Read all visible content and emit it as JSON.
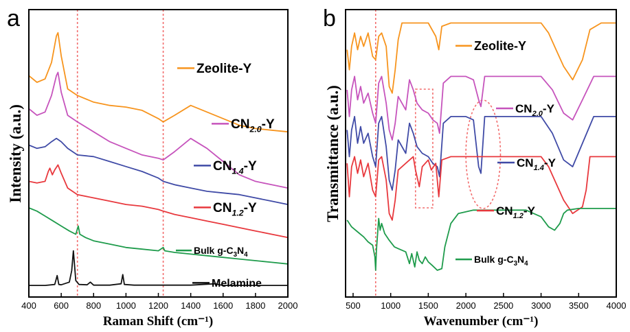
{
  "chart_data": [
    {
      "type": "line",
      "panel_label": "a",
      "xlabel": "Raman Shift (cm⁻¹)",
      "ylabel": "Intensity (a.u.)",
      "xlim": [
        400,
        2000
      ],
      "x_ticks": [
        "400",
        "600",
        "800",
        "1000",
        "1200",
        "1400",
        "1600",
        "1800",
        "2000"
      ],
      "y_ticks": [],
      "reference_lines_x": [
        700,
        1230
      ],
      "legend_placement": "inline-right",
      "series": [
        {
          "name": "Zeolite-Y",
          "color": "#F7941D",
          "x": [
            400,
            450,
            500,
            540,
            570,
            580,
            600,
            640,
            700,
            800,
            900,
            1000,
            1100,
            1200,
            1230,
            1300,
            1400,
            1500,
            1600,
            1700,
            1800,
            1900,
            2000
          ],
          "y": [
            6.4,
            6.2,
            6.3,
            6.8,
            7.6,
            7.7,
            7.0,
            6.0,
            5.8,
            5.6,
            5.5,
            5.45,
            5.35,
            5.1,
            5.0,
            5.2,
            5.5,
            5.3,
            5.1,
            4.9,
            4.8,
            4.75,
            4.7
          ]
        },
        {
          "name": "CN2.0-Y",
          "color": "#C653BC",
          "x": [
            400,
            450,
            500,
            540,
            570,
            580,
            600,
            640,
            700,
            800,
            900,
            1000,
            1100,
            1200,
            1230,
            1300,
            1400,
            1500,
            1600,
            1700,
            1800,
            1900,
            2000
          ],
          "y": [
            5.4,
            5.2,
            5.3,
            5.8,
            6.4,
            6.5,
            5.9,
            5.2,
            5.0,
            4.7,
            4.4,
            4.2,
            4.0,
            3.9,
            3.85,
            4.1,
            4.5,
            4.2,
            3.8,
            3.4,
            3.2,
            3.1,
            3.0
          ]
        },
        {
          "name": "CN1.4-Y",
          "color": "#3F4AA6",
          "x": [
            400,
            450,
            500,
            540,
            570,
            600,
            640,
            700,
            800,
            900,
            1000,
            1100,
            1200,
            1230,
            1300,
            1400,
            1500,
            1600,
            1700,
            1800,
            1900,
            2000
          ],
          "y": [
            4.3,
            4.2,
            4.25,
            4.4,
            4.5,
            4.4,
            4.2,
            4.0,
            3.95,
            3.8,
            3.65,
            3.5,
            3.3,
            3.2,
            3.1,
            3.0,
            2.9,
            2.85,
            2.8,
            2.7,
            2.6,
            2.5
          ]
        },
        {
          "name": "CN1.2-Y",
          "color": "#E8383D",
          "x": [
            400,
            450,
            500,
            520,
            530,
            545,
            560,
            580,
            600,
            640,
            700,
            800,
            900,
            1000,
            1100,
            1200,
            1230,
            1300,
            1400,
            1500,
            1600,
            1700,
            1800,
            1900,
            2000
          ],
          "y": [
            3.2,
            3.15,
            3.2,
            3.5,
            3.6,
            3.4,
            3.55,
            3.7,
            3.45,
            3.0,
            2.8,
            2.7,
            2.6,
            2.5,
            2.45,
            2.35,
            2.3,
            2.2,
            2.1,
            2.0,
            1.9,
            1.8,
            1.7,
            1.6,
            1.5
          ]
        },
        {
          "name": "Bulk g-C3N4",
          "color": "#1E9B4B",
          "x": [
            400,
            450,
            500,
            550,
            600,
            650,
            690,
            705,
            715,
            750,
            800,
            900,
            1000,
            1100,
            1200,
            1230,
            1240,
            1300,
            1400,
            1500,
            1600,
            1700,
            1800,
            1900,
            2000
          ],
          "y": [
            2.4,
            2.3,
            2.15,
            2.0,
            1.85,
            1.7,
            1.6,
            1.85,
            1.6,
            1.5,
            1.4,
            1.3,
            1.2,
            1.15,
            1.1,
            1.2,
            1.1,
            1.05,
            1.0,
            0.95,
            0.9,
            0.85,
            0.8,
            0.75,
            0.7
          ]
        },
        {
          "name": "Melamine",
          "color": "#111111",
          "x": [
            400,
            500,
            560,
            575,
            585,
            600,
            650,
            665,
            675,
            690,
            710,
            760,
            780,
            800,
            900,
            970,
            980,
            990,
            1050,
            1200,
            1400,
            1550,
            1600,
            1800,
            2000
          ],
          "y": [
            0.05,
            0.05,
            0.08,
            0.35,
            0.08,
            0.07,
            0.15,
            0.5,
            1.1,
            0.2,
            0.08,
            0.07,
            0.15,
            0.06,
            0.06,
            0.1,
            0.38,
            0.08,
            0.06,
            0.06,
            0.06,
            0.1,
            0.05,
            0.05,
            0.05
          ]
        }
      ]
    },
    {
      "type": "line",
      "panel_label": "b",
      "xlabel": "Wavenumber (cm⁻¹)",
      "ylabel": "Transmittance (a.u.)",
      "xlim": [
        400,
        4000
      ],
      "x_ticks": [
        "500",
        "1000",
        "1500",
        "2000",
        "2500",
        "3000",
        "3500",
        "4000"
      ],
      "y_ticks": [],
      "reference_lines_x": [
        800
      ],
      "highlight_rect_x": [
        1330,
        1560
      ],
      "highlight_ellipse_x": [
        2000,
        2460
      ],
      "legend_placement": "inline-center",
      "series": [
        {
          "name": "Zeolite-Y",
          "color": "#F7941D",
          "x": [
            420,
            450,
            480,
            520,
            560,
            600,
            640,
            700,
            760,
            800,
            840,
            880,
            940,
            980,
            1020,
            1060,
            1100,
            1150,
            1300,
            1500,
            1600,
            1640,
            1680,
            1800,
            2500,
            3000,
            3100,
            3200,
            3300,
            3420,
            3550,
            3650,
            3800,
            4000
          ],
          "y": [
            6.8,
            6.2,
            6.9,
            7.3,
            6.8,
            7.2,
            6.9,
            7.3,
            6.6,
            6.5,
            7.2,
            7.3,
            6.9,
            5.7,
            5.5,
            6.2,
            7.1,
            7.6,
            7.6,
            7.6,
            7.2,
            6.8,
            7.5,
            7.6,
            7.6,
            7.6,
            7.3,
            6.8,
            6.3,
            5.9,
            6.5,
            7.4,
            7.6,
            7.6
          ]
        },
        {
          "name": "CN2.0-Y",
          "color": "#C653BC",
          "x": [
            420,
            450,
            480,
            520,
            560,
            600,
            640,
            700,
            760,
            800,
            840,
            880,
            940,
            980,
            1020,
            1060,
            1100,
            1200,
            1250,
            1300,
            1350,
            1420,
            1500,
            1560,
            1620,
            1650,
            1700,
            1800,
            2000,
            2100,
            2170,
            2200,
            2250,
            2350,
            2500,
            3000,
            3150,
            3300,
            3420,
            3550,
            3700,
            4000
          ],
          "y": [
            5.6,
            4.8,
            5.6,
            6.0,
            5.3,
            5.7,
            5.2,
            5.5,
            4.9,
            4.6,
            5.8,
            6.0,
            5.2,
            4.4,
            4.1,
            4.6,
            5.4,
            5.0,
            5.9,
            5.6,
            5.2,
            5.0,
            4.9,
            4.7,
            4.6,
            4.3,
            5.8,
            6.0,
            6.0,
            5.9,
            5.3,
            5.1,
            6.0,
            6.0,
            6.0,
            6.0,
            5.6,
            4.9,
            4.7,
            5.3,
            6.0,
            6.0
          ]
        },
        {
          "name": "CN1.4-Y",
          "color": "#3F4AA6",
          "x": [
            420,
            450,
            480,
            520,
            560,
            600,
            640,
            700,
            760,
            800,
            840,
            880,
            940,
            980,
            1020,
            1060,
            1100,
            1200,
            1250,
            1300,
            1350,
            1420,
            1500,
            1560,
            1620,
            1650,
            1700,
            1800,
            2000,
            2100,
            2170,
            2200,
            2250,
            2350,
            2500,
            3000,
            3150,
            3300,
            3420,
            3550,
            3700,
            4000
          ],
          "y": [
            4.4,
            3.6,
            4.4,
            4.8,
            4.0,
            4.5,
            4.0,
            4.3,
            3.6,
            3.3,
            4.6,
            4.8,
            3.9,
            2.9,
            2.6,
            3.2,
            4.1,
            3.7,
            4.6,
            4.3,
            3.9,
            3.7,
            3.6,
            3.4,
            3.3,
            3.0,
            4.6,
            4.8,
            4.8,
            4.7,
            3.3,
            3.1,
            4.8,
            4.8,
            4.8,
            4.8,
            4.3,
            3.5,
            3.3,
            4.0,
            4.8,
            4.8
          ]
        },
        {
          "name": "CN1.2-Y",
          "color": "#E8383D",
          "x": [
            420,
            450,
            480,
            520,
            560,
            600,
            640,
            700,
            760,
            800,
            840,
            880,
            940,
            980,
            1020,
            1060,
            1100,
            1200,
            1300,
            1330,
            1380,
            1420,
            1500,
            1540,
            1600,
            1640,
            1680,
            1800,
            2000,
            2500,
            3000,
            3100,
            3200,
            3300,
            3420,
            3550,
            3600,
            3650,
            4000
          ],
          "y": [
            3.4,
            2.4,
            3.3,
            3.6,
            3.1,
            3.5,
            3.0,
            3.4,
            2.6,
            2.4,
            3.5,
            3.6,
            2.9,
            1.9,
            1.7,
            2.3,
            3.2,
            3.4,
            3.6,
            3.2,
            2.7,
            3.3,
            3.5,
            3.2,
            3.4,
            2.4,
            3.5,
            3.6,
            3.6,
            3.6,
            3.6,
            3.3,
            2.8,
            2.3,
            1.9,
            2.1,
            2.6,
            3.6,
            3.6
          ]
        },
        {
          "name": "Bulk g-C3N4",
          "color": "#1E9B4B",
          "x": [
            420,
            480,
            560,
            640,
            700,
            760,
            790,
            800,
            810,
            840,
            860,
            880,
            920,
            980,
            1050,
            1100,
            1200,
            1250,
            1280,
            1320,
            1350,
            1380,
            1420,
            1460,
            1500,
            1550,
            1620,
            1680,
            1720,
            1800,
            1900,
            2100,
            2500,
            2800,
            3000,
            3100,
            3180,
            3250,
            3300,
            3350,
            3500,
            4000
          ],
          "y": [
            1.7,
            1.5,
            1.35,
            1.2,
            1.05,
            0.95,
            0.6,
            0.2,
            0.8,
            1.75,
            1.4,
            1.6,
            1.3,
            1.1,
            0.9,
            0.85,
            0.75,
            0.4,
            0.7,
            0.3,
            0.75,
            0.5,
            0.4,
            0.6,
            0.45,
            0.35,
            0.2,
            0.25,
            0.9,
            1.6,
            1.9,
            2.0,
            2.0,
            2.0,
            1.8,
            1.5,
            1.4,
            1.6,
            1.9,
            2.0,
            2.05,
            2.05
          ]
        }
      ]
    }
  ]
}
